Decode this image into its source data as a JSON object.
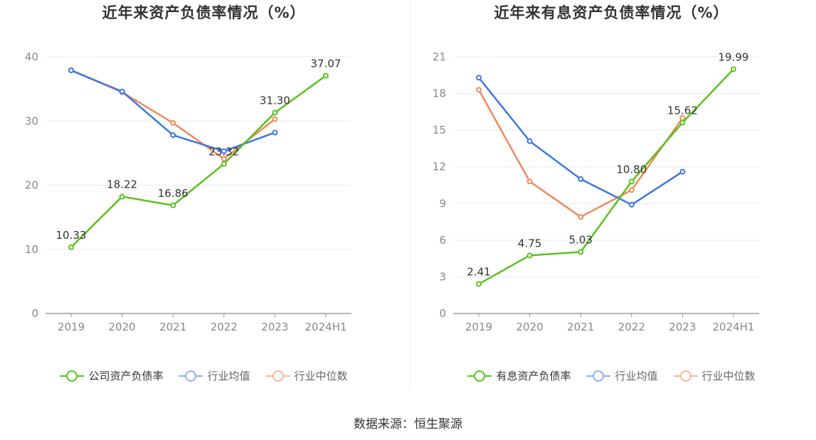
{
  "source": "数据来源：恒生聚源",
  "colors": {
    "company": "#5ac21c",
    "avg": "#3f77e0",
    "median": "#f08a5d",
    "legend_avg": "#8fb1ef",
    "legend_median": "#f6b79b"
  },
  "chart_data": [
    {
      "type": "line",
      "title": "近年来资产负债率情况（%）",
      "categories": [
        "2019",
        "2020",
        "2021",
        "2022",
        "2023",
        "2024H1"
      ],
      "ylim": [
        0,
        40
      ],
      "yticks": [
        "0",
        "10",
        "20",
        "30",
        "40"
      ],
      "grid": true,
      "legend_position": "bottom",
      "series": [
        {
          "name": "公司资产负债率",
          "key": "company",
          "values": [
            10.33,
            18.22,
            16.86,
            23.32,
            31.3,
            37.07
          ],
          "labels": [
            "10.33",
            "18.22",
            "16.86",
            "23.32",
            "31.30",
            "37.07"
          ]
        },
        {
          "name": "行业均值",
          "key": "avg",
          "values": [
            37.9,
            34.6,
            27.8,
            25.3,
            28.2,
            null
          ]
        },
        {
          "name": "行业中位数",
          "key": "median",
          "values": [
            37.9,
            34.5,
            29.7,
            24.1,
            30.3,
            null
          ]
        }
      ]
    },
    {
      "type": "line",
      "title": "近年来有息资产负债率情况（%）",
      "categories": [
        "2019",
        "2020",
        "2021",
        "2022",
        "2023",
        "2024H1"
      ],
      "ylim": [
        0,
        21
      ],
      "yticks": [
        "0",
        "3",
        "6",
        "9",
        "12",
        "15",
        "18",
        "21"
      ],
      "grid": true,
      "legend_position": "bottom",
      "series": [
        {
          "name": "有息资产负债率",
          "key": "company",
          "values": [
            2.41,
            4.75,
            5.03,
            10.8,
            15.62,
            19.99
          ],
          "labels": [
            "2.41",
            "4.75",
            "5.03",
            "10.80",
            "15.62",
            "19.99"
          ]
        },
        {
          "name": "行业均值",
          "key": "avg",
          "values": [
            19.3,
            14.1,
            11.0,
            8.9,
            11.6,
            null
          ]
        },
        {
          "name": "行业中位数",
          "key": "median",
          "values": [
            18.3,
            10.8,
            7.9,
            10.1,
            16.0,
            null
          ]
        }
      ]
    }
  ]
}
